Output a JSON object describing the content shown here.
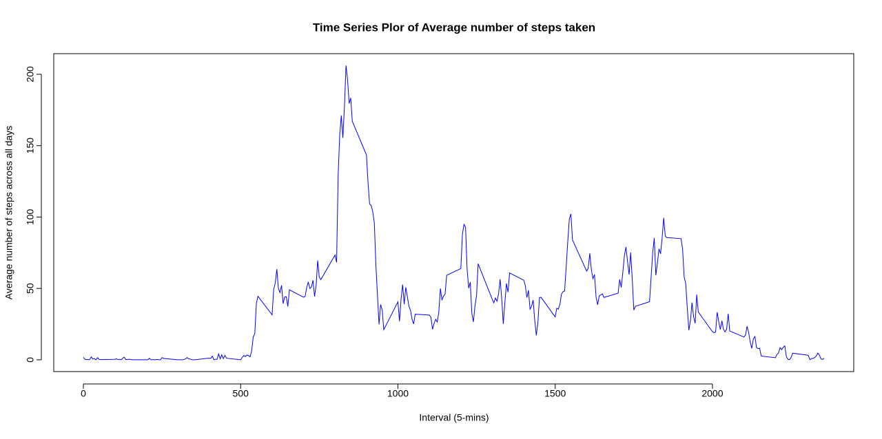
{
  "chart_data": {
    "type": "line",
    "title": "Time Series Plor of Average number of steps taken",
    "x_label": "Interval (5-mins)",
    "y_label": "Average number of steps across all days",
    "color": "#0000ff",
    "x": [
      0,
      5,
      10,
      15,
      20,
      25,
      30,
      35,
      40,
      45,
      50,
      55,
      100,
      105,
      110,
      115,
      120,
      125,
      130,
      135,
      140,
      145,
      150,
      155,
      200,
      205,
      210,
      215,
      220,
      225,
      230,
      235,
      240,
      245,
      250,
      255,
      300,
      305,
      310,
      315,
      320,
      325,
      330,
      335,
      340,
      345,
      350,
      355,
      400,
      405,
      410,
      415,
      420,
      425,
      430,
      435,
      440,
      445,
      450,
      455,
      500,
      505,
      510,
      515,
      520,
      525,
      530,
      535,
      540,
      545,
      550,
      555,
      600,
      605,
      610,
      615,
      620,
      625,
      630,
      635,
      640,
      645,
      650,
      655,
      700,
      705,
      710,
      715,
      720,
      725,
      730,
      735,
      740,
      745,
      750,
      755,
      800,
      805,
      810,
      815,
      820,
      825,
      830,
      835,
      840,
      845,
      850,
      855,
      900,
      905,
      910,
      915,
      920,
      925,
      930,
      935,
      940,
      945,
      950,
      955,
      1000,
      1005,
      1010,
      1015,
      1020,
      1025,
      1030,
      1035,
      1040,
      1045,
      1050,
      1055,
      1100,
      1105,
      1110,
      1115,
      1120,
      1125,
      1130,
      1135,
      1140,
      1145,
      1150,
      1155,
      1200,
      1205,
      1210,
      1215,
      1220,
      1225,
      1230,
      1235,
      1240,
      1245,
      1250,
      1255,
      1300,
      1305,
      1310,
      1315,
      1320,
      1325,
      1330,
      1335,
      1340,
      1345,
      1350,
      1355,
      1400,
      1405,
      1410,
      1415,
      1420,
      1425,
      1430,
      1435,
      1440,
      1445,
      1450,
      1455,
      1500,
      1505,
      1510,
      1515,
      1520,
      1525,
      1530,
      1535,
      1540,
      1545,
      1550,
      1555,
      1600,
      1605,
      1610,
      1615,
      1620,
      1625,
      1630,
      1635,
      1640,
      1645,
      1650,
      1655,
      1700,
      1705,
      1710,
      1715,
      1720,
      1725,
      1730,
      1735,
      1740,
      1745,
      1750,
      1755,
      1800,
      1805,
      1810,
      1815,
      1820,
      1825,
      1830,
      1835,
      1840,
      1845,
      1850,
      1855,
      1900,
      1905,
      1910,
      1915,
      1920,
      1925,
      1930,
      1935,
      1940,
      1945,
      1950,
      1955,
      2000,
      2005,
      2010,
      2015,
      2020,
      2025,
      2030,
      2035,
      2040,
      2045,
      2050,
      2055,
      2100,
      2105,
      2110,
      2115,
      2120,
      2125,
      2130,
      2135,
      2140,
      2145,
      2150,
      2155,
      2200,
      2205,
      2210,
      2215,
      2220,
      2225,
      2230,
      2235,
      2240,
      2245,
      2250,
      2255,
      2300,
      2305,
      2310,
      2315,
      2320,
      2325,
      2330,
      2335,
      2340,
      2345,
      2350,
      2355
    ],
    "values": [
      1.72,
      0.34,
      0.13,
      0.15,
      0.08,
      2.09,
      0.53,
      0.87,
      0,
      1.47,
      0.3,
      0.13,
      0.32,
      0.68,
      0.15,
      0.34,
      0,
      1.11,
      1.83,
      0.17,
      0.17,
      0.38,
      0.26,
      0,
      0,
      0,
      1.13,
      0,
      0,
      0.13,
      0,
      0.23,
      0,
      0,
      1.55,
      0.94,
      0,
      0,
      0,
      0,
      0.21,
      0.62,
      1.62,
      0.58,
      0.49,
      0.08,
      0,
      0,
      1.19,
      0.94,
      2.57,
      0,
      0.34,
      0.36,
      4.11,
      0.66,
      3.49,
      0.83,
      3.11,
      1.11,
      0,
      1.57,
      3,
      2.25,
      3.32,
      2.96,
      2.09,
      6.06,
      16.02,
      18.34,
      39.45,
      44.49,
      31.49,
      49.26,
      53.77,
      63.45,
      49.96,
      47.08,
      52.15,
      39.34,
      44.02,
      44.17,
      37.36,
      49.04,
      43.81,
      44.38,
      50.51,
      54.51,
      49.92,
      50.98,
      55.68,
      44.32,
      52.26,
      69.55,
      57.85,
      56.15,
      73.38,
      68.21,
      129.43,
      157.53,
      171.15,
      155.4,
      177.3,
      206.17,
      195.92,
      179.57,
      183.4,
      167.02,
      143.45,
      124.04,
      109.11,
      108.11,
      103.72,
      95.96,
      66.21,
      45.23,
      24.79,
      38.75,
      34.98,
      21.06,
      40.57,
      26.98,
      42.42,
      52.66,
      38.92,
      50.79,
      44.28,
      37.42,
      34.7,
      28.34,
      25.09,
      31.94,
      31.36,
      29.68,
      21.32,
      25.55,
      28.38,
      26.47,
      33.43,
      49.98,
      42.04,
      44.6,
      46.04,
      59.19,
      63.87,
      87.7,
      94.85,
      92.77,
      63.4,
      50.17,
      54.47,
      32.42,
      26.53,
      37.74,
      45.06,
      67.28,
      42.34,
      39.89,
      43.26,
      40.98,
      46.25,
      56.43,
      42.75,
      25.13,
      39.96,
      53.55,
      47.32,
      60.81,
      55.75,
      51.96,
      43.58,
      48.7,
      35.47,
      37.55,
      41.85,
      27.51,
      17.11,
      26.08,
      43.62,
      43.77,
      30.02,
      36.08,
      35.49,
      38.85,
      45.96,
      47.75,
      48.13,
      65.32,
      82.91,
      98.66,
      102.11,
      83.96,
      62.13,
      64.13,
      74.55,
      63.17,
      56.91,
      59.77,
      43.87,
      38.57,
      44.66,
      45.45,
      46.21,
      43.68,
      46.62,
      56.3,
      50.72,
      61.23,
      72.72,
      78.94,
      68.94,
      59.66,
      75.09,
      56.51,
      34.77,
      37.45,
      40.68,
      58.02,
      74.7,
      85.32,
      59.26,
      67.77,
      77.7,
      74.25,
      85.34,
      99.45,
      86.58,
      85.6,
      84.87,
      77.83,
      58.04,
      53.36,
      36.32,
      20.72,
      27.4,
      40.02,
      30.21,
      25.55,
      45.66,
      33.53,
      19.62,
      19.02,
      19.34,
      33.34,
      26.81,
      21.17,
      27.3,
      21.34,
      19.55,
      21.32,
      32.3,
      20.15,
      15.94,
      17.23,
      23.45,
      19.25,
      12.45,
      8.02,
      14.66,
      16.3,
      8.68,
      7.79,
      8.13,
      2.62,
      1.45,
      3.68,
      4.81,
      8.51,
      7.08,
      8.7,
      9.75,
      2.21,
      0.32,
      0.11,
      1.6,
      4.6,
      3.3,
      2.85,
      0,
      0.83,
      0.96,
      1.58,
      2.6,
      4.7,
      3.3,
      0.64,
      0.23,
      1.08
    ],
    "xlim": [
      -94.2,
      2449.2
    ],
    "ylim": [
      -8.25,
      214.42
    ],
    "xticks": [
      0,
      500,
      1000,
      1500,
      2000
    ],
    "yticks": [
      0,
      50,
      100,
      150,
      200
    ]
  }
}
